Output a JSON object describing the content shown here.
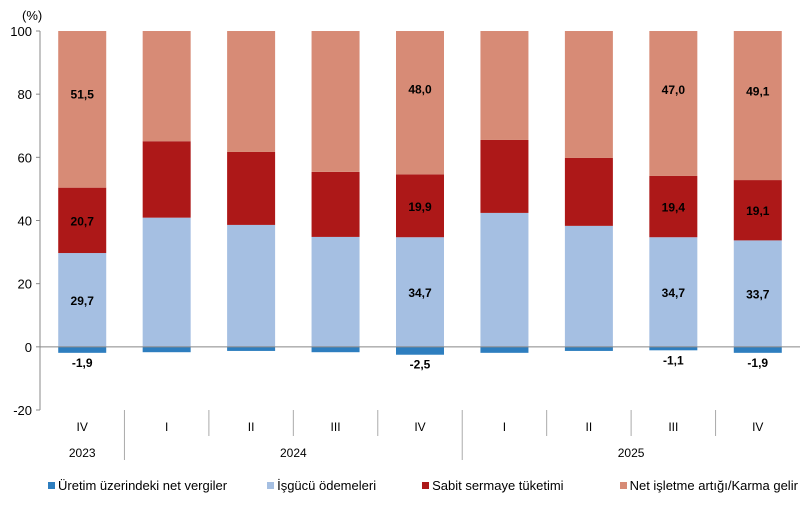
{
  "chart_data": {
    "type": "bar",
    "stacked": true,
    "unit_label": "(%)",
    "ylim": [
      -20,
      100
    ],
    "yticks": [
      -20,
      0,
      20,
      40,
      60,
      80,
      100
    ],
    "grid": false,
    "legend_position": "bottom",
    "categories": [
      "IV",
      "I",
      "II",
      "III",
      "IV",
      "I",
      "II",
      "III",
      "IV"
    ],
    "years": [
      {
        "label": "2023",
        "span": 1
      },
      {
        "label": "2024",
        "span": 4
      },
      {
        "label": "2025",
        "span": 4
      }
    ],
    "series": [
      {
        "name": "Üretim üzerindeki net vergiler",
        "color": "#2e7ebf",
        "values": [
          -1.9,
          -1.7,
          -1.3,
          -1.7,
          -2.5,
          -1.9,
          -1.3,
          -1.1,
          -1.9
        ],
        "labels": [
          "-1,9",
          "",
          "",
          "",
          "-2,5",
          "",
          "",
          "-1,1",
          "-1,9"
        ]
      },
      {
        "name": "İşgücü ödemeleri",
        "color": "#a5bfe2",
        "values": [
          29.7,
          40.9,
          38.6,
          34.8,
          34.7,
          42.4,
          38.3,
          34.7,
          33.7
        ],
        "labels": [
          "29,7",
          "",
          "",
          "",
          "34,7",
          "",
          "",
          "34,7",
          "33,7"
        ]
      },
      {
        "name": "Sabit sermaye tüketimi",
        "color": "#ad1818",
        "values": [
          20.7,
          24.2,
          23.1,
          20.6,
          19.9,
          23.1,
          21.5,
          19.4,
          19.1
        ],
        "labels": [
          "20,7",
          "",
          "",
          "",
          "19,9",
          "",
          "",
          "19,4",
          "19,1"
        ]
      },
      {
        "name": "Net işletme artığı/Karma gelir",
        "color": "#d78b76",
        "values": [
          51.5,
          36.6,
          39.6,
          46.3,
          48.0,
          36.4,
          41.5,
          47.0,
          49.1
        ],
        "labels": [
          "51,5",
          "",
          "",
          "",
          "48,0",
          "",
          "",
          "47,0",
          "49,1"
        ]
      }
    ]
  }
}
